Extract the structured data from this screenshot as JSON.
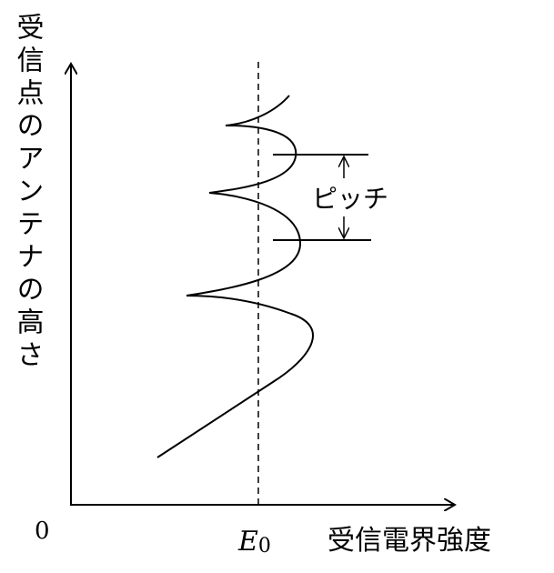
{
  "y_axis_label": "受信点のアンテナの高さ",
  "origin": "0",
  "e0": {
    "symbol": "E",
    "subscript": "0"
  },
  "x_axis_label": "受信電界強度",
  "pitch_label": "ピッチ"
}
